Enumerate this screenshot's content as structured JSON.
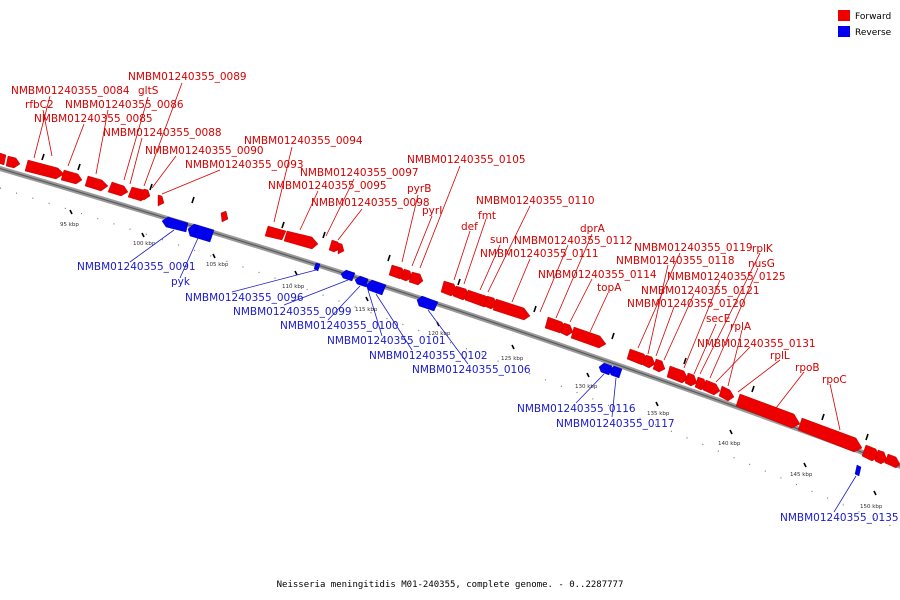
{
  "caption": "Neisseria meningitidis M01-240355, complete genome. - 0..2287777",
  "legend": [
    {
      "label": "Forward",
      "color": "#ee0000"
    },
    {
      "label": "Reverse",
      "color": "#0000ee"
    }
  ],
  "colors": {
    "forward": "#ee0000",
    "reverse": "#0000ee",
    "backbone": "#777777",
    "label_forward": "#d60000",
    "label_reverse": "#1a1acc"
  },
  "ticks": [
    "95 kbp",
    "100 kbp",
    "105 kbp",
    "110 kbp",
    "115 kbp",
    "120 kbp",
    "125 kbp",
    "130 kbp",
    "135 kbp",
    "140 kbp",
    "145 kbp",
    "150 kbp"
  ],
  "genes_forward": [
    "NMBM01240355_0084",
    "rfbC2",
    "NMBM01240355_0085",
    "NMBM01240355_0086",
    "gltS",
    "NMBM01240355_0089",
    "NMBM01240355_0088",
    "NMBM01240355_0090",
    "NMBM01240355_0093",
    "NMBM01240355_0094",
    "NMBM01240355_0097",
    "NMBM01240355_0095",
    "NMBM01240355_0098",
    "NMBM01240355_0105",
    "pyrB",
    "pyrI",
    "def",
    "fmt",
    "NMBM01240355_0110",
    "sun",
    "NMBM01240355_0111",
    "NMBM01240355_0112",
    "dprA",
    "NMBM01240355_0114",
    "topA",
    "NMBM01240355_0119",
    "rplK",
    "NMBM01240355_0118",
    "nusG",
    "NMBM01240355_0125",
    "NMBM01240355_0121",
    "NMBM01240355_0120",
    "secE",
    "rplA",
    "NMBM01240355_0131",
    "rplL",
    "rpoB",
    "rpoC"
  ],
  "genes_reverse": [
    "NMBM01240355_0091",
    "pyk",
    "NMBM01240355_0096",
    "NMBM01240355_0099",
    "NMBM01240355_0100",
    "NMBM01240355_0101",
    "NMBM01240355_0102",
    "NMBM01240355_0106",
    "NMBM01240355_0116",
    "NMBM01240355_0117",
    "NMBM01240355_0135"
  ]
}
